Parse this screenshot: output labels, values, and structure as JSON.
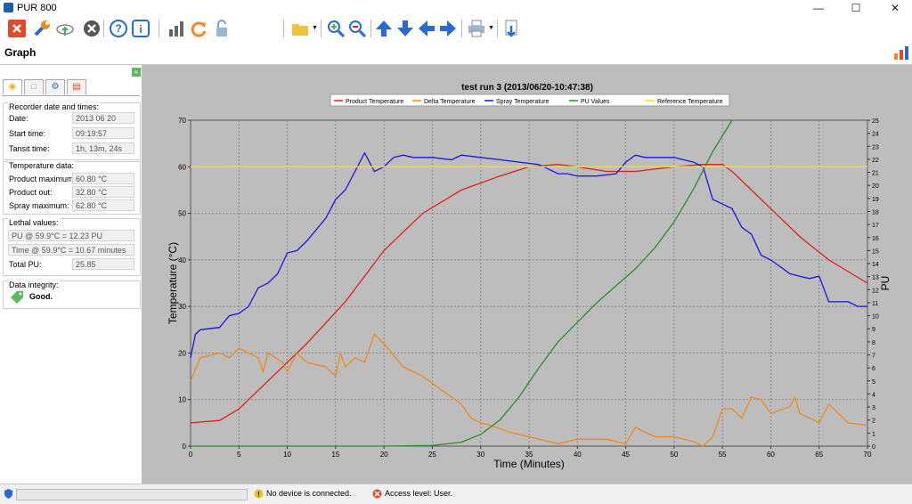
{
  "window": {
    "title": "PUR 800"
  },
  "page": {
    "title": "Graph"
  },
  "toolbar": {
    "icons": [
      "close-icon",
      "wrench-icon",
      "cloud-upload-icon",
      "cancel-icon",
      "help-icon",
      "info-icon",
      "bar-chart-icon",
      "refresh-icon",
      "unlock-icon",
      "folder-icon",
      "zoom-in-icon",
      "zoom-out-icon",
      "arrow-up-icon",
      "arrow-down-icon",
      "arrow-left-icon",
      "arrow-right-icon",
      "print-icon",
      "export-icon"
    ]
  },
  "sidebar": {
    "tabs": [
      "lightbulb-icon",
      "document-icon",
      "gear-icon",
      "chart-icon"
    ],
    "recorder": {
      "title": "Recorder date and times:",
      "date_label": "Date:",
      "date_value": "2013 06 20",
      "start_label": "Start time:",
      "start_value": "09:19:57",
      "transit_label": "Tansit time:",
      "transit_value": "1h, 13m, 24s"
    },
    "temperature": {
      "title": "Temperature data:",
      "pmax_label": "Product maximum:",
      "pmax_value": "60.80 °C",
      "pout_label": "Product out:",
      "pout_value": "32.80 °C",
      "smax_label": "Spray maximum:",
      "smax_value": "62.80 °C"
    },
    "lethal": {
      "title": "Lethal values:",
      "pu_value": "PU @ 59.9°C = 12.23 PU",
      "time_value": "Time @ 59.9°C = 10.67 minutes",
      "total_label": "Total PU:",
      "total_value": "25.85"
    },
    "integrity": {
      "title": "Data integrity:",
      "value": "Good."
    }
  },
  "status": {
    "device": "No device is connected.",
    "access": "Access level: User."
  },
  "chart_data": {
    "type": "line",
    "title": "test run 3 (2013/06/20-10:47:38)",
    "xlabel": "Time (Minutes)",
    "ylabel": "Temperature (°C)",
    "y2label": "PU",
    "xlim": [
      0,
      70
    ],
    "ylim": [
      0,
      70
    ],
    "y2lim": [
      0,
      25
    ],
    "xticks": [
      0,
      5,
      10,
      15,
      20,
      25,
      30,
      35,
      40,
      45,
      50,
      55,
      60,
      65,
      70
    ],
    "yticks": [
      0,
      10,
      20,
      30,
      40,
      50,
      60,
      70
    ],
    "y2ticks": [
      0,
      1,
      2,
      3,
      4,
      5,
      6,
      7,
      8,
      9,
      10,
      11,
      12,
      13,
      14,
      15,
      16,
      17,
      18,
      19,
      20,
      21,
      22,
      23,
      24,
      25
    ],
    "grid": true,
    "legend_position": "top",
    "series": [
      {
        "name": "Product Temperature",
        "color": "#e02020",
        "axis": "left",
        "x": [
          0,
          3,
          5,
          8,
          12,
          16,
          20,
          24,
          28,
          32,
          35,
          38,
          40,
          43,
          46,
          50,
          53,
          55,
          56,
          58,
          60,
          63,
          66,
          70
        ],
        "y": [
          5,
          5.5,
          8,
          14,
          22,
          31,
          42,
          50,
          55,
          58,
          60,
          60.5,
          60,
          59,
          59,
          60,
          60.5,
          60.5,
          59,
          55,
          51,
          45,
          40,
          35
        ]
      },
      {
        "name": "Delta Temperature",
        "color": "#f08a20",
        "axis": "left",
        "x": [
          0,
          1,
          3,
          4,
          5,
          6,
          7,
          7.5,
          8,
          9.5,
          10,
          11,
          12,
          14,
          15,
          15.5,
          16,
          17,
          18,
          19,
          20,
          22,
          24,
          26,
          28,
          29,
          30,
          31,
          33,
          35,
          37,
          38,
          40,
          43,
          45,
          46,
          48,
          50,
          52,
          53,
          54,
          55,
          56,
          57,
          58,
          59,
          60,
          62,
          62.5,
          63,
          64,
          65,
          66,
          68,
          70
        ],
        "y": [
          14,
          19,
          20,
          19,
          21,
          20,
          19,
          16,
          20,
          18,
          16,
          20,
          18,
          17,
          15,
          20,
          17,
          19,
          18,
          24,
          22,
          17,
          15,
          12,
          9,
          6,
          5,
          4.5,
          3,
          2,
          1,
          0.5,
          1.5,
          1.5,
          0.5,
          4,
          2,
          2,
          1,
          0,
          2,
          8,
          8,
          6,
          10.5,
          10,
          7,
          8.5,
          10.5,
          7,
          6,
          5,
          9,
          5,
          4.5
        ]
      },
      {
        "name": "Spray Temperature",
        "color": "#1818e0",
        "axis": "left",
        "x": [
          0,
          0.5,
          1,
          3,
          4,
          5,
          6,
          7,
          8,
          9,
          10,
          11,
          12,
          14,
          15,
          15.5,
          16,
          17,
          18,
          19,
          20,
          21,
          22,
          23,
          25,
          27,
          28,
          30,
          32,
          34,
          36,
          38,
          39,
          40,
          42,
          44,
          45,
          46,
          47,
          48,
          50,
          52,
          53,
          54,
          55,
          56,
          57,
          58,
          59,
          60,
          62,
          63,
          64,
          65,
          66,
          68,
          69,
          70
        ],
        "y": [
          19,
          24,
          25,
          25.5,
          28,
          28.5,
          30,
          34,
          35,
          37,
          41.5,
          42,
          44,
          49,
          53,
          54,
          55,
          59,
          63,
          59,
          60,
          62,
          62.5,
          62,
          62,
          61.5,
          62.5,
          62,
          61.5,
          61,
          60.5,
          58.5,
          58.5,
          58,
          58,
          58.5,
          61,
          62.5,
          62,
          62,
          62,
          61,
          60,
          53,
          52,
          51,
          47,
          45.5,
          41,
          40,
          37,
          36.5,
          36,
          36.5,
          31,
          31,
          30,
          30
        ]
      },
      {
        "name": "PU Values",
        "color": "#2e8b2e",
        "axis": "right",
        "x": [
          0,
          10,
          20,
          25,
          28,
          30,
          32,
          34,
          36,
          38,
          40,
          42,
          44,
          46,
          48,
          50,
          52,
          54,
          56
        ],
        "y": [
          0,
          0,
          0,
          0.05,
          0.3,
          0.9,
          2,
          3.8,
          6,
          8,
          9.5,
          11,
          12.3,
          13.6,
          15.2,
          17.2,
          19.7,
          22.6,
          25.2
        ]
      },
      {
        "name": "Reference Temperature",
        "color": "#f0e800",
        "axis": "left",
        "x": [
          0,
          70
        ],
        "y": [
          60,
          60
        ]
      }
    ]
  }
}
